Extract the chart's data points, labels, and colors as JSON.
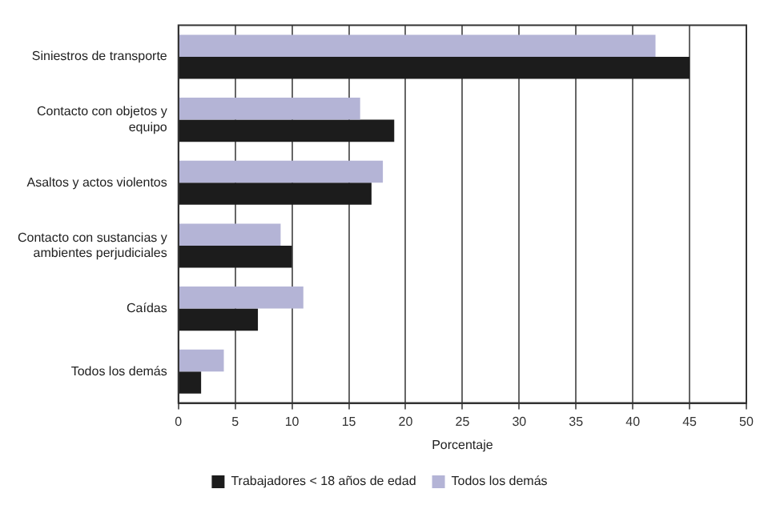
{
  "chart_data": {
    "type": "bar",
    "orientation": "horizontal",
    "xlabel": "Porcentaje",
    "categories": [
      "Siniestros de transporte",
      "Contacto con objetos y equipo",
      "Asaltos y actos violentos",
      "Contacto con sustancias y ambientes perjudiciales",
      "Caídas",
      "Todos los demás"
    ],
    "series": [
      {
        "name": "Trabajadores < 18 años de edad",
        "color": "#1c1c1c",
        "values": [
          45,
          19,
          17,
          10,
          7,
          2
        ]
      },
      {
        "name": "Todos los demás",
        "color": "#b4b4d6",
        "values": [
          42,
          16,
          18,
          9,
          11,
          4
        ]
      }
    ],
    "xlim": [
      0,
      50
    ],
    "xticks": [
      0,
      5,
      10,
      15,
      20,
      25,
      30,
      35,
      40,
      45,
      50
    ],
    "grid": "x",
    "legend": "bottom"
  }
}
